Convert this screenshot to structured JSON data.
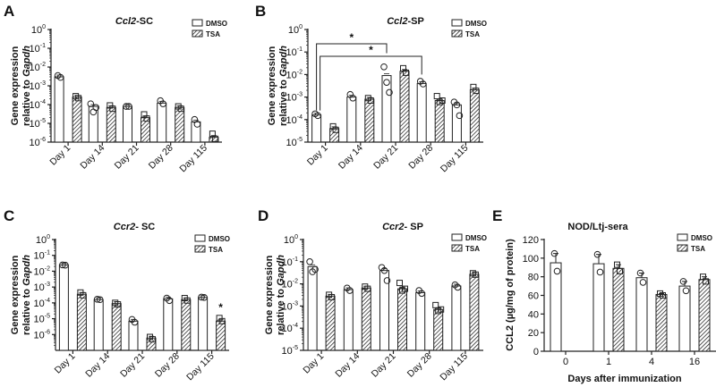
{
  "figure": {
    "panels": [
      "A",
      "B",
      "C",
      "D",
      "E"
    ]
  },
  "chart_data": [
    {
      "panel": "A",
      "type": "bar",
      "title": "Ccl2-SC",
      "title_italic": "Ccl2",
      "title_rest": "-SC",
      "ylabel_line1": "Gene expression",
      "ylabel_line2_prefix": "relative to ",
      "ylabel_line2_italic": "Gapdh",
      "xlabel": "",
      "yscale": "log",
      "ylim_exp": [
        -6,
        0
      ],
      "ytick_exps": [
        0,
        -1,
        -2,
        -3,
        -4,
        -5,
        -6
      ],
      "categories": [
        "Day 1",
        "Day 14",
        "Day 21",
        "Day 28",
        "Day 115"
      ],
      "legend": [
        "DMSO",
        "TSA"
      ],
      "legend_position": "top-right",
      "series": [
        {
          "name": "DMSO",
          "values": [
            0.003,
            8e-05,
            8e-05,
            0.00012,
            1.2e-05
          ],
          "points": [
            [
              0.0035,
              0.0028
            ],
            [
              0.00011,
              4e-05,
              7e-05
            ],
            [
              8e-05,
              8e-05
            ],
            [
              0.00016,
              0.00011
            ],
            [
              1.6e-05,
              9e-06
            ]
          ]
        },
        {
          "name": "TSA",
          "values": [
            0.00025,
            7e-05,
            2e-05,
            7e-05,
            1.8e-06
          ],
          "points": [
            [
              0.00028,
              0.00022
            ],
            [
              9e-05,
              6e-05
            ],
            [
              3e-05,
              1.8e-05
            ],
            [
              8e-05,
              6e-05
            ],
            [
              2.8e-06,
              1.5e-06
            ]
          ]
        }
      ],
      "annotations": []
    },
    {
      "panel": "B",
      "type": "bar",
      "title": "Ccl2-SP",
      "title_italic": "Ccl2",
      "title_rest": "-SP",
      "ylabel_line1": "Gene expression",
      "ylabel_line2_prefix": "relative to ",
      "ylabel_line2_italic": "Gapdh",
      "xlabel": "",
      "yscale": "log",
      "ylim_exp": [
        -5,
        0
      ],
      "ytick_exps": [
        0,
        -1,
        -2,
        -3,
        -4,
        -5
      ],
      "categories": [
        "Day 1",
        "Day 14",
        "Day 21",
        "Day 28",
        "Day 115"
      ],
      "legend": [
        "DMSO",
        "TSA"
      ],
      "legend_position": "top-right",
      "series": [
        {
          "name": "DMSO",
          "values": [
            0.00016,
            0.001,
            0.009,
            0.004,
            0.00045
          ],
          "points": [
            [
              0.00018,
              0.00015
            ],
            [
              0.0013,
              0.0009
            ],
            [
              0.022,
              0.0045,
              0.0016
            ],
            [
              0.005,
              0.0038
            ],
            [
              0.0006,
              0.00045,
              0.00015
            ]
          ]
        },
        {
          "name": "TSA",
          "values": [
            4e-05,
            0.0008,
            0.014,
            0.0007,
            0.0021
          ],
          "points": [
            [
              5e-05,
              3.5e-05
            ],
            [
              0.0009,
              0.0007
            ],
            [
              0.019,
              0.012
            ],
            [
              0.0011,
              0.0006,
              0.0007
            ],
            [
              0.0028,
              0.0019
            ]
          ]
        }
      ],
      "annotations": [
        {
          "type": "bracket",
          "from": "Day 1",
          "to": "Day 21",
          "label": "*"
        },
        {
          "type": "bracket",
          "from": "Day 1",
          "to": "Day 28",
          "label": "*"
        }
      ]
    },
    {
      "panel": "C",
      "type": "bar",
      "title": "Ccr2- SC",
      "title_italic": "Ccr2",
      "title_rest": "- SC",
      "ylabel_line1": "Gene expression",
      "ylabel_line2_prefix": "relative to ",
      "ylabel_line2_italic": "Gapdh",
      "xlabel": "",
      "yscale": "log",
      "ylim_exp": [
        -7,
        0
      ],
      "ytick_exps": [
        0,
        -1,
        -2,
        -3,
        -4,
        -5,
        -6
      ],
      "categories": [
        "Day 1",
        "Day 14",
        "Day 21",
        "Day 28",
        "Day 115"
      ],
      "legend": [
        "DMSO",
        "TSA"
      ],
      "legend_position": "top-right",
      "series": [
        {
          "name": "DMSO",
          "values": [
            0.025,
            0.00016,
            7e-06,
            0.00018,
            0.00022
          ],
          "points": [
            [
              0.025,
              0.024
            ],
            [
              0.00017,
              0.00016
            ],
            [
              9e-06,
              6e-06
            ],
            [
              0.0002,
              0.00014
            ],
            [
              0.00023,
              0.00022
            ]
          ]
        },
        {
          "name": "TSA",
          "values": [
            0.00035,
            9e-05,
            6e-07,
            0.00016,
            7e-06
          ],
          "points": [
            [
              0.00045,
              0.0003
            ],
            [
              0.0001,
              8e-05
            ],
            [
              7e-07,
              5e-07
            ],
            [
              0.0002,
              0.00014
            ],
            [
              1.1e-05,
              7e-06
            ]
          ]
        }
      ],
      "annotations": [
        {
          "type": "star",
          "at": "Day 115",
          "series": "TSA",
          "label": "*"
        }
      ]
    },
    {
      "panel": "D",
      "type": "bar",
      "title": "Ccr2- SP",
      "title_italic": "Ccr2",
      "title_rest": "- SP",
      "ylabel_line1": "Gene expression",
      "ylabel_line2_prefix": "relative to ",
      "ylabel_line2_italic": "Gapdh",
      "xlabel": "",
      "yscale": "log",
      "ylim_exp": [
        -5,
        0
      ],
      "ytick_exps": [
        0,
        -1,
        -2,
        -3,
        -4,
        -5
      ],
      "categories": [
        "Day 1",
        "Day 14",
        "Day 21",
        "Day 28",
        "Day 115"
      ],
      "legend": [
        "DMSO",
        "TSA"
      ],
      "legend_position": "top-right",
      "series": [
        {
          "name": "DMSO",
          "values": [
            0.06,
            0.0055,
            0.04,
            0.004,
            0.008
          ],
          "points": [
            [
              0.1,
              0.035,
              0.045
            ],
            [
              0.0065,
              0.005
            ],
            [
              0.055,
              0.04,
              0.014
            ],
            [
              0.005,
              0.0037
            ],
            [
              0.009,
              0.007
            ]
          ]
        },
        {
          "name": "TSA",
          "values": [
            0.0028,
            0.0065,
            0.006,
            0.0007,
            0.027
          ],
          "points": [
            [
              0.0032,
              0.0025
            ],
            [
              0.0075,
              0.006
            ],
            [
              0.011,
              0.005,
              0.006
            ],
            [
              0.0011,
              0.0006,
              0.0007
            ],
            [
              0.03,
              0.026
            ]
          ]
        }
      ],
      "annotations": []
    },
    {
      "panel": "E",
      "type": "bar",
      "title": "NOD/Ltj-sera",
      "ylabel": "CCL2 (µg/mg of protein)",
      "xlabel": "Days after immunization",
      "yscale": "linear",
      "ylim": [
        0,
        120
      ],
      "yticks": [
        0,
        20,
        40,
        60,
        80,
        100,
        120
      ],
      "categories": [
        "0",
        "1",
        "4",
        "16"
      ],
      "legend": [
        "DMSO",
        "TSA"
      ],
      "legend_position": "top-right",
      "series": [
        {
          "name": "DMSO",
          "values": [
            95,
            94,
            79,
            70
          ],
          "errors": [
            10,
            10,
            5,
            5
          ],
          "points": [
            [
              105,
              86
            ],
            [
              104,
              85
            ],
            [
              84,
              74
            ],
            [
              75,
              65
            ]
          ]
        },
        {
          "name": "TSA",
          "values": [
            null,
            89,
            61,
            77
          ],
          "errors": [
            null,
            4,
            1,
            3
          ],
          "points": [
            [],
            [
              93,
              86
            ],
            [
              62,
              60
            ],
            [
              80,
              75
            ]
          ]
        }
      ],
      "annotations": []
    }
  ]
}
